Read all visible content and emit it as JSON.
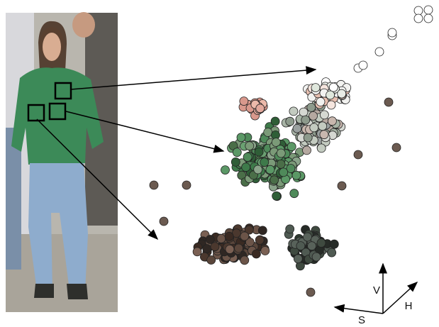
{
  "axes": {
    "v": "V",
    "h": "H",
    "s": "S"
  }
}
